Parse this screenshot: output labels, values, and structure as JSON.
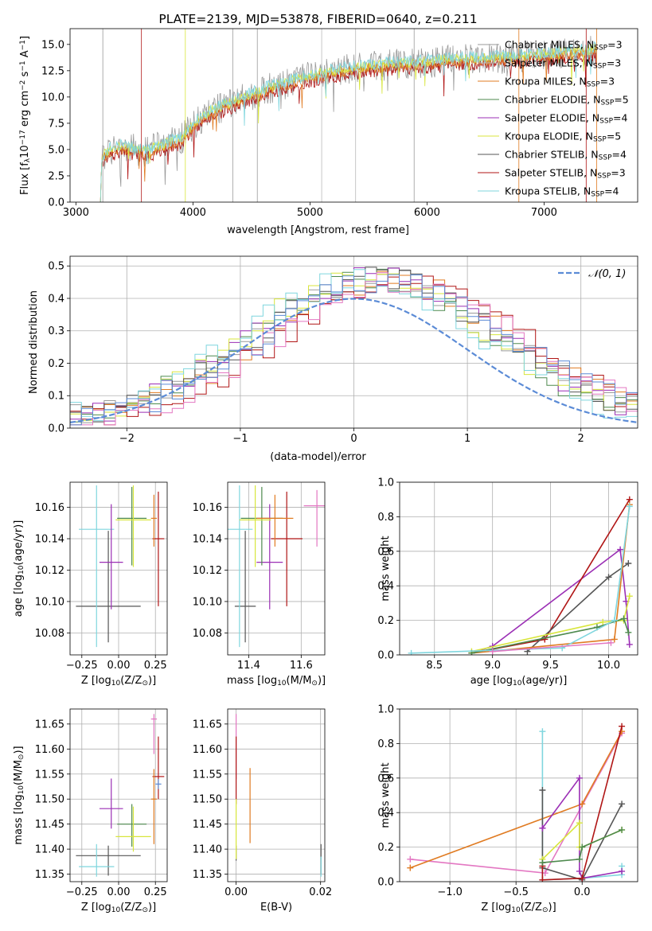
{
  "figure_title": "PLATE=2139, MJD=53878, FIBERID=0640, z=0.211",
  "colors": {
    "chabrier_miles": "#9a9a9a",
    "salpeter_miles": "#b8b8b8",
    "kroupa_miles": "#e07b22",
    "chabrier_elodie": "#4e8a4e",
    "salpeter_elodie": "#9b2fb5",
    "kroupa_elodie": "#d8e63c",
    "chabrier_stelib": "#555555",
    "salpeter_stelib": "#b01515",
    "kroupa_stelib": "#7fd6de",
    "pink": "#e377c2",
    "normal": "#5b8bd6"
  },
  "chart_data": [
    {
      "id": "spectrum",
      "type": "line",
      "title": "PLATE=2139, MJD=53878, FIBERID=0640, z=0.211",
      "xlabel": "wavelength [Angstrom, rest frame]",
      "ylabel_parts": [
        "Flux [f",
        "λ",
        "10",
        "−17",
        " erg cm",
        "−2",
        " s",
        "−1",
        " A",
        "−1",
        "]"
      ],
      "xlim": [
        2950,
        7800
      ],
      "ylim": [
        0,
        16.5
      ],
      "xticks": [
        3000,
        4000,
        5000,
        6000,
        7000
      ],
      "yticks": [
        0.0,
        2.5,
        5.0,
        7.5,
        10.0,
        12.5,
        15.0
      ],
      "legend": [
        {
          "label": "Chabrier MILES, N",
          "sub": "SSP",
          "suffix": "=3",
          "color": "#9a9a9a"
        },
        {
          "label": "Salpeter MILES, N",
          "sub": "SSP",
          "suffix": "=3",
          "color": "#b8b8b8"
        },
        {
          "label": "Kroupa MILES, N",
          "sub": "SSP",
          "suffix": "=3",
          "color": "#e07b22"
        },
        {
          "label": "Chabrier ELODIE, N",
          "sub": "SSP",
          "suffix": "=5",
          "color": "#4e8a4e"
        },
        {
          "label": "Salpeter ELODIE, N",
          "sub": "SSP",
          "suffix": "=4",
          "color": "#9b2fb5"
        },
        {
          "label": "Kroupa ELODIE, N",
          "sub": "SSP",
          "suffix": "=5",
          "color": "#d8e63c"
        },
        {
          "label": "Chabrier STELIB, N",
          "sub": "SSP",
          "suffix": "=4",
          "color": "#555555"
        },
        {
          "label": "Salpeter STELIB, N",
          "sub": "SSP",
          "suffix": "=3",
          "color": "#b01515"
        },
        {
          "label": "Kroupa STELIB, N",
          "sub": "SSP",
          "suffix": "=4",
          "color": "#7fd6de"
        }
      ],
      "continuum": [
        [
          3210,
          0
        ],
        [
          3220,
          4.0
        ],
        [
          3300,
          4.8
        ],
        [
          3400,
          5.0
        ],
        [
          3500,
          4.8
        ],
        [
          3600,
          4.6
        ],
        [
          3700,
          5.0
        ],
        [
          3800,
          5.4
        ],
        [
          3900,
          5.8
        ],
        [
          3950,
          6.4
        ],
        [
          4050,
          7.6
        ],
        [
          4150,
          8.4
        ],
        [
          4300,
          9.1
        ],
        [
          4500,
          10.0
        ],
        [
          4700,
          10.8
        ],
        [
          4900,
          11.4
        ],
        [
          5100,
          12.0
        ],
        [
          5300,
          12.4
        ],
        [
          5500,
          12.7
        ],
        [
          5700,
          12.9
        ],
        [
          5900,
          13.0
        ],
        [
          6100,
          13.2
        ],
        [
          6300,
          13.4
        ],
        [
          6500,
          13.4
        ],
        [
          6700,
          13.5
        ],
        [
          6900,
          13.7
        ],
        [
          7100,
          13.9
        ],
        [
          7300,
          14.1
        ],
        [
          7450,
          14.3
        ]
      ],
      "spikes": [
        3230,
        3560,
        3935,
        4340,
        4550,
        5100,
        5390,
        5890,
        6785,
        7360,
        7450
      ],
      "spectra": [
        {
          "color": "#9a9a9a",
          "offset": 0.2,
          "noise": 1.5
        },
        {
          "color": "#b01515",
          "offset": -0.3,
          "noise": 0.6
        },
        {
          "color": "#e07b22",
          "offset": 0.0,
          "noise": 0.5
        },
        {
          "color": "#d8e63c",
          "offset": 0.3,
          "noise": 0.5
        },
        {
          "color": "#7fd6de",
          "offset": 0.4,
          "noise": 0.6
        }
      ]
    },
    {
      "id": "residuals",
      "type": "histogram",
      "xlabel": "(data-model)/error",
      "ylabel": "Normed distribution",
      "xlim": [
        -2.5,
        2.5
      ],
      "ylim": [
        0,
        0.53
      ],
      "xticks": [
        -2,
        -1,
        0,
        1,
        2
      ],
      "yticks": [
        0.0,
        0.1,
        0.2,
        0.3,
        0.4,
        0.5
      ],
      "grid": true,
      "legend": [
        {
          "label": "𝒩(0, 1)",
          "color": "#5b8bd6",
          "style": "dashed"
        }
      ],
      "legend_position": "upper right",
      "bin_width": 0.1,
      "series_colors": [
        "#9a9a9a",
        "#e07b22",
        "#4e8a4e",
        "#9b2fb5",
        "#d8e63c",
        "#555555",
        "#b01515",
        "#7fd6de",
        "#e377c2",
        "#5b8bd6"
      ],
      "series_shift": [
        0.25,
        0.3,
        0.15,
        0.2,
        0.1,
        0.22,
        0.45,
        0.05,
        0.4,
        0.3
      ]
    },
    {
      "id": "age_vs_Z",
      "type": "errorbar",
      "xlabel_parts": [
        "Z [log",
        "10",
        "(Z/Z",
        "⊙",
        ")]"
      ],
      "ylabel_parts": [
        "age  [log",
        "10",
        "(age/yr)]"
      ],
      "xlim": [
        -0.33,
        0.33
      ],
      "ylim": [
        10.066,
        10.176
      ],
      "xticks": [
        -0.25,
        0.0,
        0.25
      ],
      "xticklabels": [
        "−0.25",
        "0.00",
        "0.25"
      ],
      "yticks": [
        10.08,
        10.1,
        10.12,
        10.14,
        10.16
      ],
      "grid": true,
      "points": [
        {
          "x": -0.07,
          "y": 10.097,
          "xerr": 0.22,
          "yerr": [
            0.023,
            0.048
          ],
          "color": "#555555"
        },
        {
          "x": -0.15,
          "y": 10.146,
          "xerr": 0.12,
          "yerr": [
            0.075,
            0.028
          ],
          "color": "#7fd6de"
        },
        {
          "x": -0.05,
          "y": 10.125,
          "xerr": 0.08,
          "yerr": [
            0.03,
            0.037
          ],
          "color": "#9b2fb5"
        },
        {
          "x": 0.09,
          "y": 10.153,
          "xerr": 0.1,
          "yerr": [
            0.03,
            0.02
          ],
          "color": "#4e8a4e"
        },
        {
          "x": 0.1,
          "y": 10.152,
          "xerr": 0.12,
          "yerr": [
            0.03,
            0.022
          ],
          "color": "#d8e63c"
        },
        {
          "x": 0.27,
          "y": 10.14,
          "xerr": 0.04,
          "yerr": [
            0.043,
            0.03
          ],
          "color": "#b01515"
        },
        {
          "x": 0.24,
          "y": 10.153,
          "xerr": 0.02,
          "yerr": [
            0.018,
            0.015
          ],
          "color": "#e07b22"
        }
      ]
    },
    {
      "id": "age_vs_mass",
      "type": "errorbar",
      "xlabel_parts": [
        "mass [log",
        "10",
        "(M/M",
        "⊙",
        ")]"
      ],
      "xlim": [
        11.32,
        11.69
      ],
      "ylim": [
        10.066,
        10.176
      ],
      "xticks": [
        11.4,
        11.6
      ],
      "xticklabels": [
        "11.4",
        "11.6"
      ],
      "yticks": [
        10.08,
        10.1,
        10.12,
        10.14,
        10.16
      ],
      "grid": true,
      "points": [
        {
          "x": 11.387,
          "y": 10.097,
          "xerr": 0.04,
          "yerr": [
            0.023,
            0.048
          ],
          "color": "#555555"
        },
        {
          "x": 11.365,
          "y": 10.146,
          "xerr": 0.05,
          "yerr": [
            0.075,
            0.028
          ],
          "color": "#7fd6de"
        },
        {
          "x": 11.48,
          "y": 10.125,
          "xerr": 0.05,
          "yerr": [
            0.03,
            0.037
          ],
          "color": "#9b2fb5"
        },
        {
          "x": 11.45,
          "y": 10.153,
          "xerr": 0.08,
          "yerr": [
            0.03,
            0.02
          ],
          "color": "#4e8a4e"
        },
        {
          "x": 11.425,
          "y": 10.152,
          "xerr": 0.06,
          "yerr": [
            0.03,
            0.022
          ],
          "color": "#d8e63c"
        },
        {
          "x": 11.545,
          "y": 10.14,
          "xerr": 0.06,
          "yerr": [
            0.043,
            0.03
          ],
          "color": "#b01515"
        },
        {
          "x": 11.5,
          "y": 10.153,
          "xerr": 0.07,
          "yerr": [
            0.018,
            0.015
          ],
          "color": "#e07b22"
        },
        {
          "x": 11.66,
          "y": 10.161,
          "xerr": 0.05,
          "yerr": [
            0.026,
            0.01
          ],
          "color": "#e377c2"
        }
      ]
    },
    {
      "id": "weight_vs_age",
      "type": "line",
      "xlabel_parts": [
        "age  [log",
        "10",
        "(age/yr)]"
      ],
      "ylabel": "mass weight",
      "xlim": [
        8.2,
        10.25
      ],
      "ylim": [
        0,
        1.0
      ],
      "xticks": [
        8.5,
        9.0,
        9.5,
        10.0
      ],
      "yticks": [
        0.0,
        0.2,
        0.4,
        0.6,
        0.8,
        1.0
      ],
      "grid": true,
      "series": [
        {
          "color": "#9b2fb5",
          "x": [
            8.82,
            9.0,
            10.1,
            10.15,
            10.18
          ],
          "y": [
            0.01,
            0.05,
            0.61,
            0.31,
            0.06
          ]
        },
        {
          "color": "#b01515",
          "x": [
            8.82,
            9.45,
            10.18
          ],
          "y": [
            0.01,
            0.09,
            0.9
          ]
        },
        {
          "color": "#555555",
          "x": [
            9.3,
            10.0,
            10.17
          ],
          "y": [
            0.02,
            0.45,
            0.53
          ]
        },
        {
          "color": "#e07b22",
          "x": [
            8.82,
            10.05,
            10.18
          ],
          "y": [
            0.01,
            0.09,
            0.87
          ]
        },
        {
          "color": "#d8e63c",
          "x": [
            8.82,
            9.95,
            10.13,
            10.18
          ],
          "y": [
            0.02,
            0.19,
            0.2,
            0.34
          ]
        },
        {
          "color": "#4e8a4e",
          "x": [
            8.82,
            9.9,
            10.13,
            10.17
          ],
          "y": [
            0.01,
            0.16,
            0.21,
            0.13
          ]
        },
        {
          "color": "#7fd6de",
          "x": [
            8.3,
            9.6,
            10.05,
            10.18
          ],
          "y": [
            0.01,
            0.04,
            0.2,
            0.86
          ]
        },
        {
          "color": "#e377c2",
          "x": [
            9.0,
            10.02
          ],
          "y": [
            0.02,
            0.07
          ]
        }
      ]
    },
    {
      "id": "mass_vs_Z",
      "type": "errorbar",
      "xlabel_parts": [
        "Z [log",
        "10",
        "(Z/Z",
        "⊙",
        ")]"
      ],
      "ylabel_parts": [
        "mass [log",
        "10",
        "(M/M",
        "⊙",
        ")]"
      ],
      "xlim": [
        -0.33,
        0.33
      ],
      "ylim": [
        11.335,
        11.68
      ],
      "xticks": [
        -0.25,
        0.0,
        0.25
      ],
      "xticklabels": [
        "−0.25",
        "0.00",
        "0.25"
      ],
      "yticks": [
        11.35,
        11.4,
        11.45,
        11.5,
        11.55,
        11.6,
        11.65
      ],
      "grid": true,
      "points": [
        {
          "x": -0.07,
          "y": 11.387,
          "xerr": 0.22,
          "yerr": [
            0.04,
            0.02
          ],
          "color": "#555555"
        },
        {
          "x": -0.15,
          "y": 11.365,
          "xerr": 0.12,
          "yerr": [
            0.02,
            0.045
          ],
          "color": "#7fd6de"
        },
        {
          "x": -0.05,
          "y": 11.481,
          "xerr": 0.08,
          "yerr": [
            0.04,
            0.06
          ],
          "color": "#9b2fb5"
        },
        {
          "x": 0.09,
          "y": 11.45,
          "xerr": 0.1,
          "yerr": [
            0.045,
            0.04
          ],
          "color": "#4e8a4e"
        },
        {
          "x": 0.1,
          "y": 11.425,
          "xerr": 0.12,
          "yerr": [
            0.03,
            0.06
          ],
          "color": "#d8e63c"
        },
        {
          "x": 0.27,
          "y": 11.545,
          "xerr": 0.04,
          "yerr": [
            0.045,
            0.08
          ],
          "color": "#b01515"
        },
        {
          "x": 0.24,
          "y": 11.5,
          "xerr": 0.02,
          "yerr": [
            0.09,
            0.06
          ],
          "color": "#e07b22"
        },
        {
          "x": 0.24,
          "y": 11.66,
          "xerr": 0.02,
          "yerr": [
            0.07,
            0.01
          ],
          "color": "#e377c2"
        },
        {
          "x": 0.27,
          "y": 11.53,
          "xerr": 0.02,
          "yerr": [
            0.01,
            0.01
          ],
          "color": "#5b8bd6"
        }
      ]
    },
    {
      "id": "mass_vs_ebv",
      "type": "errorbar",
      "xlabel": "E(B-V)",
      "xlim": [
        -0.002,
        0.021
      ],
      "ylim": [
        11.335,
        11.68
      ],
      "xticks": [
        0.0,
        0.02
      ],
      "xticklabels": [
        "0.00",
        "0.02"
      ],
      "yticks": [
        11.35,
        11.4,
        11.45,
        11.5,
        11.55,
        11.6,
        11.65
      ],
      "grid": true,
      "points": [
        {
          "x": 0.0,
          "y": 11.387,
          "xerr": 0,
          "yerr": [
            0.01,
            0.02
          ],
          "color": "#555555"
        },
        {
          "x": 0.0,
          "y": 11.6,
          "xerr": 0,
          "yerr": [
            0.06,
            0.07
          ],
          "color": "#e377c2"
        },
        {
          "x": 0.0,
          "y": 11.55,
          "xerr": 0,
          "yerr": [
            0.06,
            0.075
          ],
          "color": "#b01515"
        },
        {
          "x": 0.0,
          "y": 11.45,
          "xerr": 0,
          "yerr": [
            0.07,
            0.05
          ],
          "color": "#d8e63c"
        },
        {
          "x": 0.0033,
          "y": 11.487,
          "xerr": 0,
          "yerr": [
            0.075,
            0.075
          ],
          "color": "#e07b22"
        },
        {
          "x": 0.0201,
          "y": 11.38,
          "xerr": 0,
          "yerr": [
            0.03,
            0.03
          ],
          "color": "#555555"
        },
        {
          "x": 0.0201,
          "y": 11.365,
          "xerr": 0,
          "yerr": [
            0.02,
            0.02
          ],
          "color": "#7fd6de"
        }
      ]
    },
    {
      "id": "weight_vs_Z",
      "type": "line",
      "xlabel_parts": [
        "Z [log",
        "10",
        "(Z/Z",
        "⊙",
        ")]"
      ],
      "ylabel": "mass weight",
      "xlim": [
        -1.38,
        0.42
      ],
      "ylim": [
        0,
        1.0
      ],
      "xticks": [
        -1.0,
        -0.5,
        0.0
      ],
      "xticklabels": [
        "−1.0",
        "−0.5",
        "0.0"
      ],
      "yticks": [
        0.0,
        0.2,
        0.4,
        0.6,
        0.8,
        1.0
      ],
      "grid": true,
      "series": [
        {
          "color": "#e377c2",
          "x": [
            -1.3,
            -0.28,
            0.3
          ],
          "y": [
            0.13,
            0.05,
            0.86
          ]
        },
        {
          "color": "#e07b22",
          "x": [
            -1.3,
            0.0,
            0.3
          ],
          "y": [
            0.08,
            0.45,
            0.87
          ]
        },
        {
          "color": "#7fd6de",
          "x": [
            -0.3,
            -0.3,
            0.0,
            0.3,
            0.3
          ],
          "y": [
            0.87,
            0.01,
            0.02,
            0.04,
            0.09
          ]
        },
        {
          "color": "#555555",
          "x": [
            -0.3,
            -0.3,
            0.0,
            0.3
          ],
          "y": [
            0.53,
            0.08,
            0.01,
            0.45
          ]
        },
        {
          "color": "#9b2fb5",
          "x": [
            -0.3,
            -0.3,
            -0.02,
            -0.02,
            0.0,
            0.3
          ],
          "y": [
            0.31,
            0.31,
            0.6,
            0.06,
            0.02,
            0.06
          ]
        },
        {
          "color": "#b01515",
          "x": [
            -0.3,
            -0.3,
            0.0,
            0.3
          ],
          "y": [
            0.09,
            0.01,
            0.02,
            0.9
          ]
        },
        {
          "color": "#d8e63c",
          "x": [
            -0.3,
            -0.02,
            -0.02,
            0.0,
            0.3
          ],
          "y": [
            0.13,
            0.34,
            0.2,
            0.2,
            0.3
          ]
        },
        {
          "color": "#4e8a4e",
          "x": [
            -0.3,
            -0.02,
            0.0,
            0.3
          ],
          "y": [
            0.11,
            0.13,
            0.2,
            0.3
          ]
        }
      ]
    }
  ]
}
